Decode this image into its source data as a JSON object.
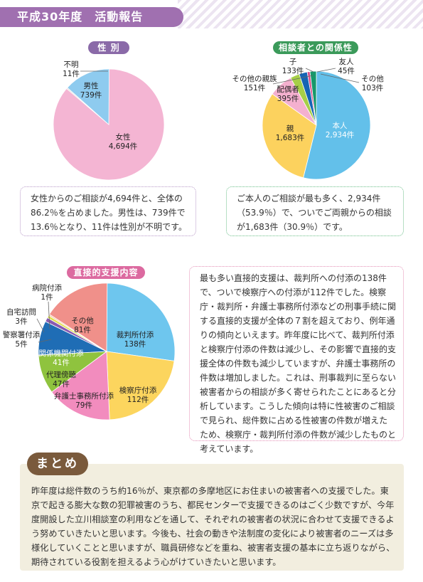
{
  "header": {
    "title": "平成30年度　活動報告"
  },
  "sections": {
    "gender": {
      "title": "性 別",
      "description": "女性からのご相談が4,694件と、全体の86.2％を占めました。男性は、739件で13.6％となり、11件は性別が不明です。"
    },
    "relationship": {
      "title": "相談者との関係性",
      "description": "ご本人のご相談が最も多く、2,934件（53.9％）で、ついでご両親からの相談が1,683件（30.9％）です。"
    },
    "support": {
      "title": "直接的支援内容",
      "description": "最も多い直接的支援は、裁判所への付添の138件で、ついで検察庁への付添が112件でした。検察庁・裁判所・弁護士事務所付添などの刑事手続に関する直接的支援が全体の７割を超えており、例年通りの傾向といえます。昨年度に比べて、裁判所付添と検察庁付添の件数は減少し、その影響で直接的支援全体の件数も減少していますが、弁護士事務所の件数は増加しました。これは、刑事裁判に至らない被害者からの相談が多く寄せられたことにあると分析しています。こうした傾向は特に性被害のご相談で見られ、総件数に占める性被害の件数が増えたため、検察庁・裁判所付添の件数が減少したものと考えています。"
    }
  },
  "summary": {
    "title": "まとめ",
    "text": "昨年度は総件数のうち約16％が、東京都の多摩地区にお住まいの被害者への支援でした。東京で起きる膨大な数の犯罪被害のうち、都民センターで支援できるのはごく少数ですが、今年度開設した立川相談室の利用などを通して、それぞれの被害者の状況に合わせて支援できるよう努めていきたいと思います。今後も、社会の動きや法制度の変化により被害者のニーズは多様化していくことと思いますが、職員研修などを重ね、被害者支援の基本に立ち返りながら、期待されている役割を担えるよう心がけていきたいと思います。"
  },
  "chart_data": [
    {
      "type": "pie",
      "title": "性 別",
      "slices": [
        {
          "label": "女性",
          "value": 4694,
          "value_text": "4,694件",
          "color": "#f4b5d3"
        },
        {
          "label": "不明",
          "value": 11,
          "value_text": "11件",
          "color": "#d9d9d9"
        },
        {
          "label": "男性",
          "value": 739,
          "value_text": "739件",
          "color": "#8ecbef"
        }
      ]
    },
    {
      "type": "pie",
      "title": "相談者との関係性",
      "slices": [
        {
          "label": "本人",
          "value": 2934,
          "value_text": "2,934件",
          "color": "#63c0ea"
        },
        {
          "label": "親",
          "value": 1683,
          "value_text": "1,683件",
          "color": "#fcd25e"
        },
        {
          "label": "配偶者",
          "value": 395,
          "value_text": "395件",
          "color": "#f4b0cf"
        },
        {
          "label": "その他の親族",
          "value": 151,
          "value_text": "151件",
          "color": "#a6cf48"
        },
        {
          "label": "子",
          "value": 133,
          "value_text": "133件",
          "color": "#1565b4"
        },
        {
          "label": "友人",
          "value": 45,
          "value_text": "45件",
          "color": "#d94c8a"
        },
        {
          "label": "その他",
          "value": 103,
          "value_text": "103件",
          "color": "#17986a"
        }
      ]
    },
    {
      "type": "pie",
      "title": "直接的支援内容",
      "slices": [
        {
          "label": "裁判所付添",
          "value": 138,
          "value_text": "138件",
          "color": "#6ec6ee"
        },
        {
          "label": "検察庁付添",
          "value": 112,
          "value_text": "112件",
          "color": "#fcd55e"
        },
        {
          "label": "弁護士事務所付添",
          "value": 79,
          "value_text": "79件",
          "color": "#f28cbe"
        },
        {
          "label": "代理傍聴",
          "value": 47,
          "value_text": "47件",
          "color": "#8fc33e"
        },
        {
          "label": "関係機関付添",
          "value": 41,
          "value_text": "41件",
          "color": "#1f6db5"
        },
        {
          "label": "警察署付添",
          "value": 5,
          "value_text": "5件",
          "color": "#8a5bb0"
        },
        {
          "label": "自宅訪問",
          "value": 3,
          "value_text": "3件",
          "color": "#e0e04a"
        },
        {
          "label": "病院付添",
          "value": 1,
          "value_text": "1件",
          "color": "#f6c4a0"
        },
        {
          "label": "その他",
          "value": 81,
          "value_text": "81件",
          "color": "#f0908a"
        }
      ]
    }
  ]
}
